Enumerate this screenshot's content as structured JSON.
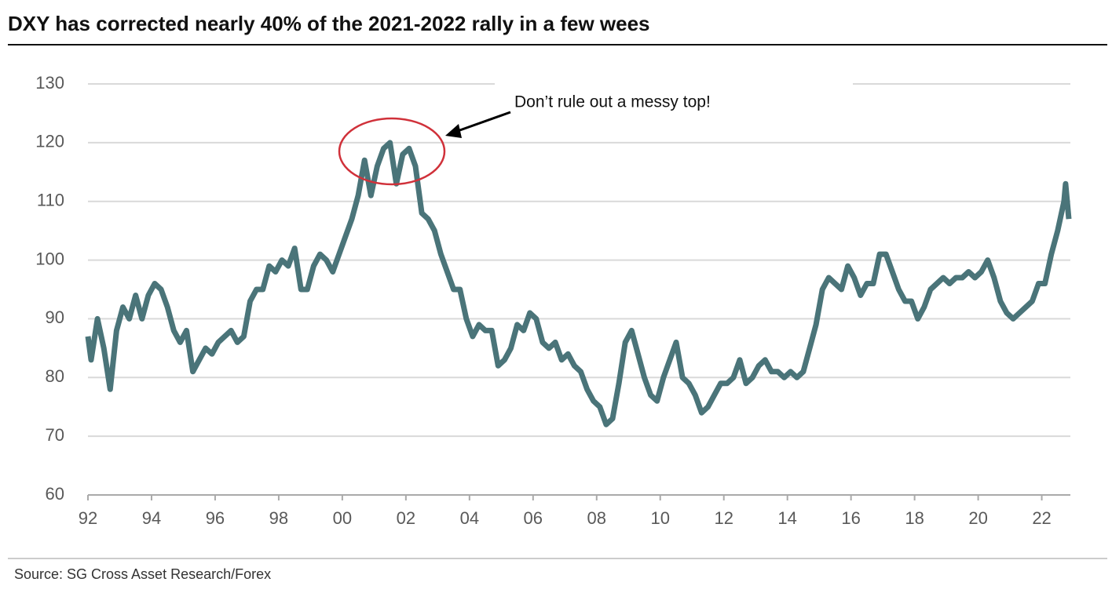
{
  "chart_data": {
    "type": "line",
    "title": "DXY has corrected nearly 40% of the 2021-2022 rally in a few wees",
    "annotation": "Don’t rule out a messy top!",
    "source": "Source: SG Cross Asset Research/Forex",
    "x": [
      1992.0,
      1992.1,
      1992.3,
      1992.5,
      1992.7,
      1992.9,
      1993.1,
      1993.3,
      1993.5,
      1993.7,
      1993.9,
      1994.1,
      1994.3,
      1994.5,
      1994.7,
      1994.9,
      1995.1,
      1995.3,
      1995.5,
      1995.7,
      1995.9,
      1996.1,
      1996.3,
      1996.5,
      1996.7,
      1996.9,
      1997.1,
      1997.3,
      1997.5,
      1997.7,
      1997.9,
      1998.1,
      1998.3,
      1998.5,
      1998.7,
      1998.9,
      1999.1,
      1999.3,
      1999.5,
      1999.7,
      1999.9,
      2000.1,
      2000.3,
      2000.5,
      2000.7,
      2000.9,
      2001.1,
      2001.3,
      2001.5,
      2001.7,
      2001.9,
      2002.1,
      2002.3,
      2002.5,
      2002.7,
      2002.9,
      2003.1,
      2003.3,
      2003.5,
      2003.7,
      2003.9,
      2004.1,
      2004.3,
      2004.5,
      2004.7,
      2004.9,
      2005.1,
      2005.3,
      2005.5,
      2005.7,
      2005.9,
      2006.1,
      2006.3,
      2006.5,
      2006.7,
      2006.9,
      2007.1,
      2007.3,
      2007.5,
      2007.7,
      2007.9,
      2008.1,
      2008.3,
      2008.5,
      2008.7,
      2008.9,
      2009.1,
      2009.3,
      2009.5,
      2009.7,
      2009.9,
      2010.1,
      2010.3,
      2010.5,
      2010.7,
      2010.9,
      2011.1,
      2011.3,
      2011.5,
      2011.7,
      2011.9,
      2012.1,
      2012.3,
      2012.5,
      2012.7,
      2012.9,
      2013.1,
      2013.3,
      2013.5,
      2013.7,
      2013.9,
      2014.1,
      2014.3,
      2014.5,
      2014.7,
      2014.9,
      2015.1,
      2015.3,
      2015.5,
      2015.7,
      2015.9,
      2016.1,
      2016.3,
      2016.5,
      2016.7,
      2016.9,
      2017.1,
      2017.3,
      2017.5,
      2017.7,
      2017.9,
      2018.1,
      2018.3,
      2018.5,
      2018.7,
      2018.9,
      2019.1,
      2019.3,
      2019.5,
      2019.7,
      2019.9,
      2020.1,
      2020.3,
      2020.5,
      2020.7,
      2020.9,
      2021.1,
      2021.3,
      2021.5,
      2021.7,
      2021.9,
      2022.1,
      2022.3,
      2022.5,
      2022.7,
      2022.75,
      2022.85
    ],
    "series": [
      {
        "name": "DXY",
        "color": "#4a7479",
        "values": [
          87,
          83,
          90,
          85,
          78,
          88,
          92,
          90,
          94,
          90,
          94,
          96,
          95,
          92,
          88,
          86,
          88,
          81,
          83,
          85,
          84,
          86,
          87,
          88,
          86,
          87,
          93,
          95,
          95,
          99,
          98,
          100,
          99,
          102,
          95,
          95,
          99,
          101,
          100,
          98,
          101,
          104,
          107,
          111,
          117,
          111,
          116,
          119,
          120,
          113,
          118,
          119,
          116,
          108,
          107,
          105,
          101,
          98,
          95,
          95,
          90,
          87,
          89,
          88,
          88,
          82,
          83,
          85,
          89,
          88,
          91,
          90,
          86,
          85,
          86,
          83,
          84,
          82,
          81,
          78,
          76,
          75,
          72,
          73,
          79,
          86,
          88,
          84,
          80,
          77,
          76,
          80,
          83,
          86,
          80,
          79,
          77,
          74,
          75,
          77,
          79,
          79,
          80,
          83,
          79,
          80,
          82,
          83,
          81,
          81,
          80,
          81,
          80,
          81,
          85,
          89,
          95,
          97,
          96,
          95,
          99,
          97,
          94,
          96,
          96,
          101,
          101,
          98,
          95,
          93,
          93,
          90,
          92,
          95,
          96,
          97,
          96,
          97,
          97,
          98,
          97,
          98,
          100,
          97,
          93,
          91,
          90,
          91,
          92,
          93,
          96,
          96,
          101,
          105,
          110,
          113,
          107
        ]
      }
    ],
    "xlim": [
      1992,
      2022.9
    ],
    "ylim": [
      60,
      130
    ],
    "xticks": [
      {
        "value": 1992,
        "label": "92"
      },
      {
        "value": 1994,
        "label": "94"
      },
      {
        "value": 1996,
        "label": "96"
      },
      {
        "value": 1998,
        "label": "98"
      },
      {
        "value": 2000,
        "label": "00"
      },
      {
        "value": 2002,
        "label": "02"
      },
      {
        "value": 2004,
        "label": "04"
      },
      {
        "value": 2006,
        "label": "06"
      },
      {
        "value": 2008,
        "label": "08"
      },
      {
        "value": 2010,
        "label": "10"
      },
      {
        "value": 2012,
        "label": "12"
      },
      {
        "value": 2014,
        "label": "14"
      },
      {
        "value": 2016,
        "label": "16"
      },
      {
        "value": 2018,
        "label": "18"
      },
      {
        "value": 2020,
        "label": "20"
      },
      {
        "value": 2022,
        "label": "22"
      }
    ],
    "yticks": [
      60,
      70,
      80,
      90,
      100,
      110,
      120,
      130
    ],
    "grid": true
  }
}
